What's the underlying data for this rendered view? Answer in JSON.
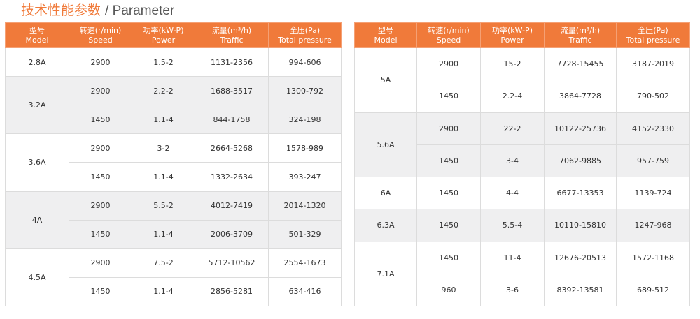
{
  "header": {
    "title": "技术性能参数",
    "subtitle": "/ Parameter"
  },
  "tables": [
    {
      "columns": [
        {
          "cn": "型号",
          "en": "Model"
        },
        {
          "cn": "转速(r/min)",
          "en": "Speed"
        },
        {
          "cn": "功率(kW-P)",
          "en": "Power"
        },
        {
          "cn": "流量(m³/h)",
          "en": "Traffic"
        },
        {
          "cn": "全压(Pa)",
          "en": "Total pressure"
        }
      ],
      "groups": [
        {
          "model": "2.8A",
          "rows": [
            [
              "2900",
              "1.5-2",
              "1131-2356",
              "994-606"
            ]
          ]
        },
        {
          "model": "3.2A",
          "rows": [
            [
              "2900",
              "2.2-2",
              "1688-3517",
              "1300-792"
            ],
            [
              "1450",
              "1.1-4",
              "844-1758",
              "324-198"
            ]
          ]
        },
        {
          "model": "3.6A",
          "rows": [
            [
              "2900",
              "3-2",
              "2664-5268",
              "1578-989"
            ],
            [
              "1450",
              "1.1-4",
              "1332-2634",
              "393-247"
            ]
          ]
        },
        {
          "model": "4A",
          "rows": [
            [
              "2900",
              "5.5-2",
              "4012-7419",
              "2014-1320"
            ],
            [
              "1450",
              "1.1-4",
              "2006-3709",
              "501-329"
            ]
          ]
        },
        {
          "model": "4.5A",
          "rows": [
            [
              "2900",
              "7.5-2",
              "5712-10562",
              "2554-1673"
            ],
            [
              "1450",
              "1.1-4",
              "2856-5281",
              "634-416"
            ]
          ]
        }
      ]
    },
    {
      "columns": [
        {
          "cn": "型号",
          "en": "Model"
        },
        {
          "cn": "转速(r/min)",
          "en": "Speed"
        },
        {
          "cn": "功率(kW-P)",
          "en": "Power"
        },
        {
          "cn": "流量(m³/h)",
          "en": "Traffic"
        },
        {
          "cn": "全压(Pa)",
          "en": "Total pressure"
        }
      ],
      "groups": [
        {
          "model": "5A",
          "rows": [
            [
              "2900",
              "15-2",
              "7728-15455",
              "3187-2019"
            ],
            [
              "1450",
              "2.2-4",
              "3864-7728",
              "790-502"
            ]
          ]
        },
        {
          "model": "5.6A",
          "rows": [
            [
              "2900",
              "22-2",
              "10122-25736",
              "4152-2330"
            ],
            [
              "1450",
              "3-4",
              "7062-9885",
              "957-759"
            ]
          ]
        },
        {
          "model": "6A",
          "rows": [
            [
              "1450",
              "4-4",
              "6677-13353",
              "1139-724"
            ]
          ]
        },
        {
          "model": "6.3A",
          "rows": [
            [
              "1450",
              "5.5-4",
              "10110-15810",
              "1247-968"
            ]
          ]
        },
        {
          "model": "7.1A",
          "rows": [
            [
              "1450",
              "11-4",
              "12676-20513",
              "1572-1168"
            ],
            [
              "960",
              "3-6",
              "8392-13581",
              "689-512"
            ]
          ]
        }
      ]
    }
  ]
}
